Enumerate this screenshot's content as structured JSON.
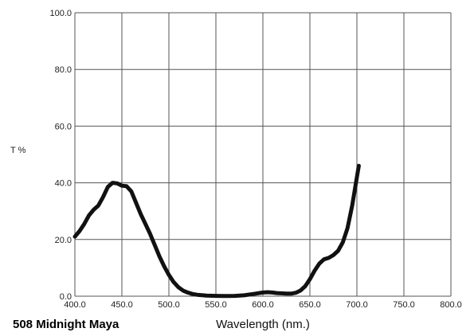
{
  "chart_data": {
    "type": "line",
    "title": "508 Midnight Maya",
    "xlabel": "Wavelength (nm.)",
    "ylabel": "T %",
    "xlim": [
      400,
      800
    ],
    "ylim": [
      0,
      100
    ],
    "grid": true,
    "x_ticks": [
      "400.0",
      "450.0",
      "500.0",
      "550.0",
      "600.0",
      "650.0",
      "700.0",
      "750.0",
      "800.0"
    ],
    "y_ticks": [
      "0.0",
      "20.0",
      "40.0",
      "60.0",
      "80.0",
      "100.0"
    ],
    "line_color": "#111111",
    "series": [
      {
        "points": [
          [
            400,
            21
          ],
          [
            405,
            23
          ],
          [
            410,
            25.5
          ],
          [
            415,
            28.5
          ],
          [
            420,
            30.5
          ],
          [
            425,
            32
          ],
          [
            430,
            35
          ],
          [
            435,
            38.5
          ],
          [
            440,
            40
          ],
          [
            445,
            39.8
          ],
          [
            450,
            39
          ],
          [
            455,
            38.8
          ],
          [
            460,
            37
          ],
          [
            465,
            33
          ],
          [
            470,
            29
          ],
          [
            475,
            25.5
          ],
          [
            480,
            22
          ],
          [
            485,
            18
          ],
          [
            490,
            14
          ],
          [
            495,
            10.5
          ],
          [
            500,
            7.5
          ],
          [
            505,
            5
          ],
          [
            510,
            3.2
          ],
          [
            515,
            2
          ],
          [
            520,
            1.3
          ],
          [
            525,
            0.8
          ],
          [
            530,
            0.5
          ],
          [
            540,
            0.2
          ],
          [
            550,
            0.1
          ],
          [
            560,
            0.05
          ],
          [
            570,
            0.1
          ],
          [
            580,
            0.3
          ],
          [
            590,
            0.8
          ],
          [
            600,
            1.3
          ],
          [
            605,
            1.4
          ],
          [
            610,
            1.3
          ],
          [
            615,
            1.1
          ],
          [
            620,
            1.0
          ],
          [
            625,
            0.9
          ],
          [
            630,
            0.9
          ],
          [
            635,
            1.2
          ],
          [
            640,
            2
          ],
          [
            645,
            3.5
          ],
          [
            650,
            6
          ],
          [
            655,
            9
          ],
          [
            660,
            11.5
          ],
          [
            665,
            13
          ],
          [
            670,
            13.5
          ],
          [
            675,
            14.5
          ],
          [
            680,
            16
          ],
          [
            685,
            19
          ],
          [
            690,
            24
          ],
          [
            695,
            32
          ],
          [
            700,
            42
          ],
          [
            702,
            46
          ]
        ]
      }
    ]
  }
}
